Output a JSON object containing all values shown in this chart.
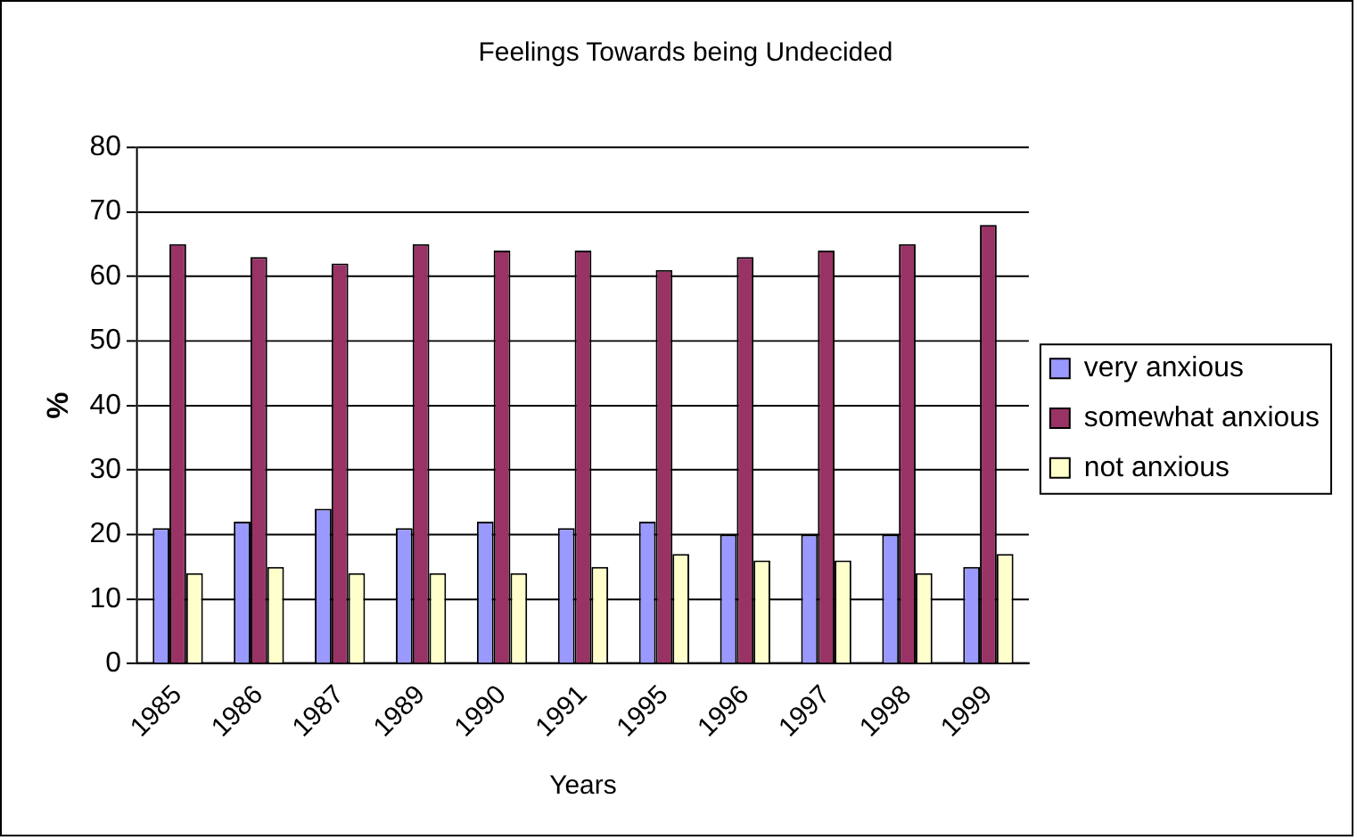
{
  "chart_data": {
    "type": "bar",
    "title": "Feelings Towards being Undecided",
    "xlabel": "Years",
    "ylabel": "%",
    "categories": [
      "1985",
      "1986",
      "1987",
      "1989",
      "1990",
      "1991",
      "1995",
      "1996",
      "1997",
      "1998",
      "1999"
    ],
    "series": [
      {
        "name": "very anxious",
        "color": "#9999ff",
        "values": [
          21,
          22,
          24,
          21,
          22,
          21,
          22,
          20,
          20,
          20,
          15
        ]
      },
      {
        "name": "somewhat anxious",
        "color": "#993366",
        "values": [
          65,
          63,
          62,
          65,
          64,
          64,
          61,
          63,
          64,
          65,
          68
        ]
      },
      {
        "name": "not anxious",
        "color": "#ffffcc",
        "values": [
          14,
          15,
          14,
          14,
          14,
          15,
          17,
          16,
          16,
          14,
          17
        ]
      }
    ],
    "ylim": [
      0,
      80
    ],
    "yticks": [
      0,
      10,
      20,
      30,
      40,
      50,
      60,
      70,
      80
    ],
    "grid": "y",
    "legend": "right"
  }
}
